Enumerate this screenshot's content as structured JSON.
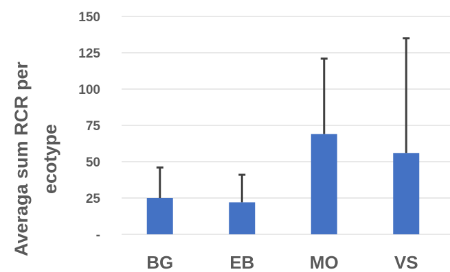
{
  "chart_data": {
    "type": "bar",
    "title": "",
    "xlabel": "",
    "ylabel_lines": [
      "Averaga sum RCR per",
      "ecotype"
    ],
    "categories": [
      "BG",
      "EB",
      "MO",
      "VS"
    ],
    "values": [
      25,
      22,
      69,
      56
    ],
    "error_upper": [
      46,
      41,
      121,
      135
    ],
    "ylim": [
      0,
      150
    ],
    "y_ticks": [
      {
        "value": 0,
        "label": "-"
      },
      {
        "value": 25,
        "label": "25"
      },
      {
        "value": 50,
        "label": "50"
      },
      {
        "value": 75,
        "label": "75"
      },
      {
        "value": 100,
        "label": "100"
      },
      {
        "value": 125,
        "label": "125"
      },
      {
        "value": 150,
        "label": "150"
      }
    ],
    "grid": true,
    "legend": "none",
    "colors": {
      "bar": "#4472C4",
      "error_bar": "#404040",
      "grid": "#D9D9D9",
      "text": "#595959"
    }
  }
}
